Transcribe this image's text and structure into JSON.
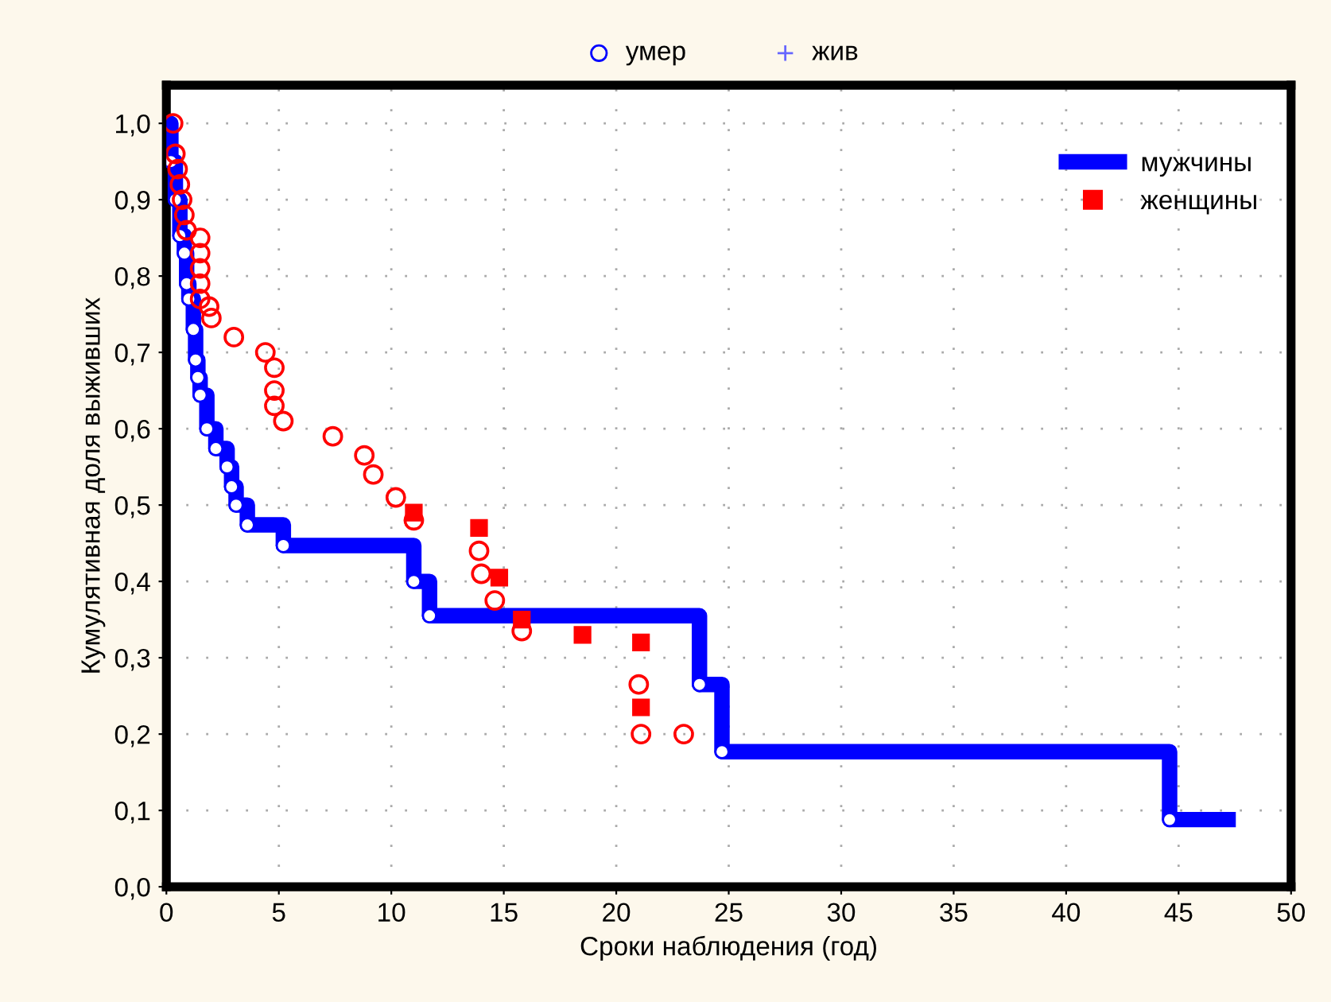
{
  "chart_data": {
    "type": "step",
    "xlabel": "Сроки наблюдения (год)",
    "ylabel": "Кумулятивная доля выживших",
    "annotations": [
      "умер",
      "жив"
    ],
    "series": [
      {
        "name": "мужчины",
        "color": "#0000ff",
        "marker": "circle",
        "x": [
          0,
          0.2,
          0.4,
          0.6,
          0.8,
          0.9,
          1.0,
          1.2,
          1.3,
          1.4,
          1.5,
          1.8,
          2.2,
          2.7,
          2.9,
          3.1,
          3.6,
          5.2,
          11.0,
          11.7,
          23.7,
          24.7,
          44.6,
          47.2
        ],
        "values": [
          1.0,
          0.95,
          0.9,
          0.853,
          0.83,
          0.79,
          0.77,
          0.73,
          0.69,
          0.667,
          0.644,
          0.6,
          0.574,
          0.55,
          0.524,
          0.5,
          0.474,
          0.447,
          0.4,
          0.355,
          0.265,
          0.177,
          0.088,
          0.088
        ]
      },
      {
        "type": "scatter",
        "color": "#ff0000",
        "marker": "circle",
        "x": [
          0.3,
          0.4,
          0.5,
          0.6,
          0.7,
          0.8,
          0.9,
          1.5,
          1.5,
          1.5,
          1.5,
          1.5,
          1.9,
          2.0,
          3.0,
          4.4,
          4.8,
          4.8,
          4.8,
          5.2,
          7.4,
          8.8,
          9.2,
          10.2,
          11.0,
          13.9,
          14.0,
          14.6,
          15.8,
          21.0,
          21.1,
          23.0
        ],
        "values": [
          1.0,
          0.96,
          0.94,
          0.92,
          0.9,
          0.88,
          0.86,
          0.85,
          0.83,
          0.81,
          0.79,
          0.77,
          0.76,
          0.745,
          0.72,
          0.7,
          0.68,
          0.65,
          0.63,
          0.61,
          0.59,
          0.565,
          0.54,
          0.51,
          0.48,
          0.44,
          0.41,
          0.375,
          0.335,
          0.265,
          0.2,
          0.2
        ]
      },
      {
        "name": "женщины",
        "type": "scatter",
        "color": "#ff0000",
        "marker": "square",
        "x": [
          11.0,
          13.9,
          14.8,
          15.8,
          18.5,
          21.1,
          21.1
        ],
        "values": [
          0.49,
          0.47,
          0.405,
          0.35,
          0.33,
          0.32,
          0.235
        ]
      }
    ],
    "xlim": [
      0,
      50
    ],
    "xticks": [
      0,
      5,
      10,
      15,
      20,
      25,
      30,
      35,
      40,
      45,
      50
    ],
    "ylim": [
      0,
      1.05
    ],
    "yticks": [
      {
        "value": 0,
        "label": "0,0"
      },
      {
        "value": 0.1,
        "label": "0,1"
      },
      {
        "value": 0.2,
        "label": "0,2"
      },
      {
        "value": 0.3,
        "label": "0,3"
      },
      {
        "value": 0.4,
        "label": "0,4"
      },
      {
        "value": 0.5,
        "label": "0,5"
      },
      {
        "value": 0.6,
        "label": "0,6"
      },
      {
        "value": 0.7,
        "label": "0,7"
      },
      {
        "value": 0.8,
        "label": "0,8"
      },
      {
        "value": 0.9,
        "label": "0,9"
      },
      {
        "value": 1.0,
        "label": "1,0"
      }
    ],
    "grid": true,
    "legend": "top right"
  }
}
